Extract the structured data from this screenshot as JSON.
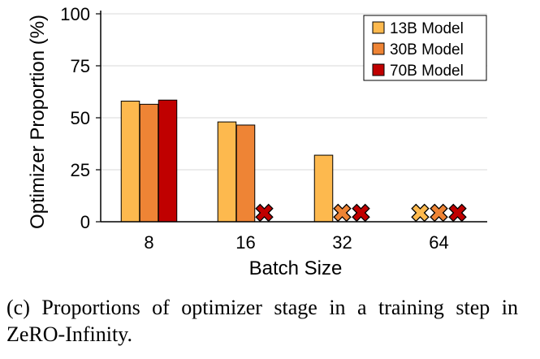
{
  "chart_data": {
    "type": "bar",
    "xlabel": "Batch Size",
    "ylabel": "Optimizer Proportion (%)",
    "ylim": [
      0,
      100
    ],
    "yticks": [
      0,
      25,
      50,
      75,
      100
    ],
    "categories": [
      "8",
      "16",
      "32",
      "64"
    ],
    "series": [
      {
        "name": "13B Model",
        "color": "#FDB94E",
        "values": [
          58,
          48,
          32,
          null
        ]
      },
      {
        "name": "30B Model",
        "color": "#EE8435",
        "values": [
          56.5,
          46.5,
          null,
          null
        ]
      },
      {
        "name": "70B Model",
        "color": "#C00000",
        "values": [
          58.5,
          null,
          null,
          null
        ]
      }
    ],
    "missing_marker": "✕",
    "grid": "horizontal",
    "legend_position": "top-right"
  },
  "caption": "(c) Proportions of optimizer stage in a training step in ZeRO-Infinity."
}
